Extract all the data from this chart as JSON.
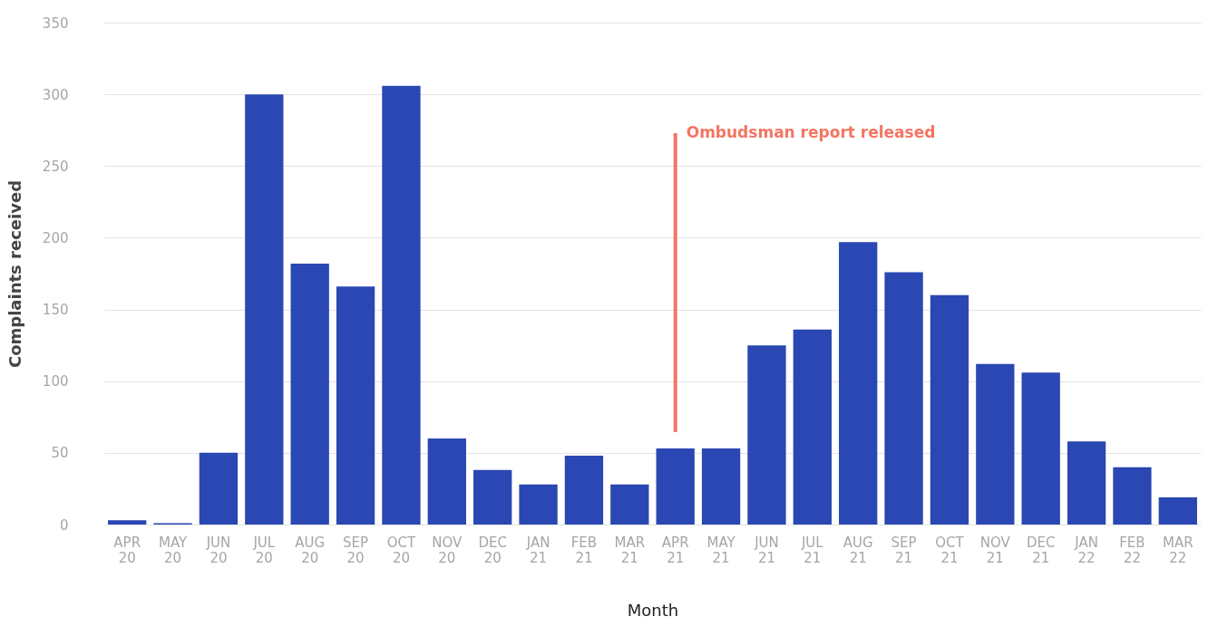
{
  "chart_data": {
    "type": "bar",
    "xlabel": "Month",
    "ylabel": "Complaints received",
    "categories": [
      "APR 20",
      "MAY 20",
      "JUN 20",
      "JUL 20",
      "AUG 20",
      "SEP 20",
      "OCT 20",
      "NOV 20",
      "DEC 20",
      "JAN 21",
      "FEB 21",
      "MAR 21",
      "APR 21",
      "MAY 21",
      "JUN 21",
      "JUL 21",
      "AUG 21",
      "SEP 21",
      "OCT 21",
      "NOV 21",
      "DEC 21",
      "JAN 22",
      "FEB 22",
      "MAR 22"
    ],
    "values": [
      3,
      1,
      50,
      300,
      182,
      166,
      306,
      60,
      38,
      28,
      48,
      28,
      53,
      53,
      125,
      136,
      197,
      176,
      160,
      112,
      106,
      58,
      40,
      19
    ],
    "color": "#2b47b3",
    "ylim": [
      0,
      350
    ],
    "yticks": [
      0,
      50,
      100,
      150,
      200,
      250,
      300,
      350
    ],
    "grid": "y",
    "ref_lines": [
      {
        "axis": "x",
        "value": "APR 21",
        "label": "Ombudsman report released",
        "color": "#f47563"
      }
    ]
  }
}
